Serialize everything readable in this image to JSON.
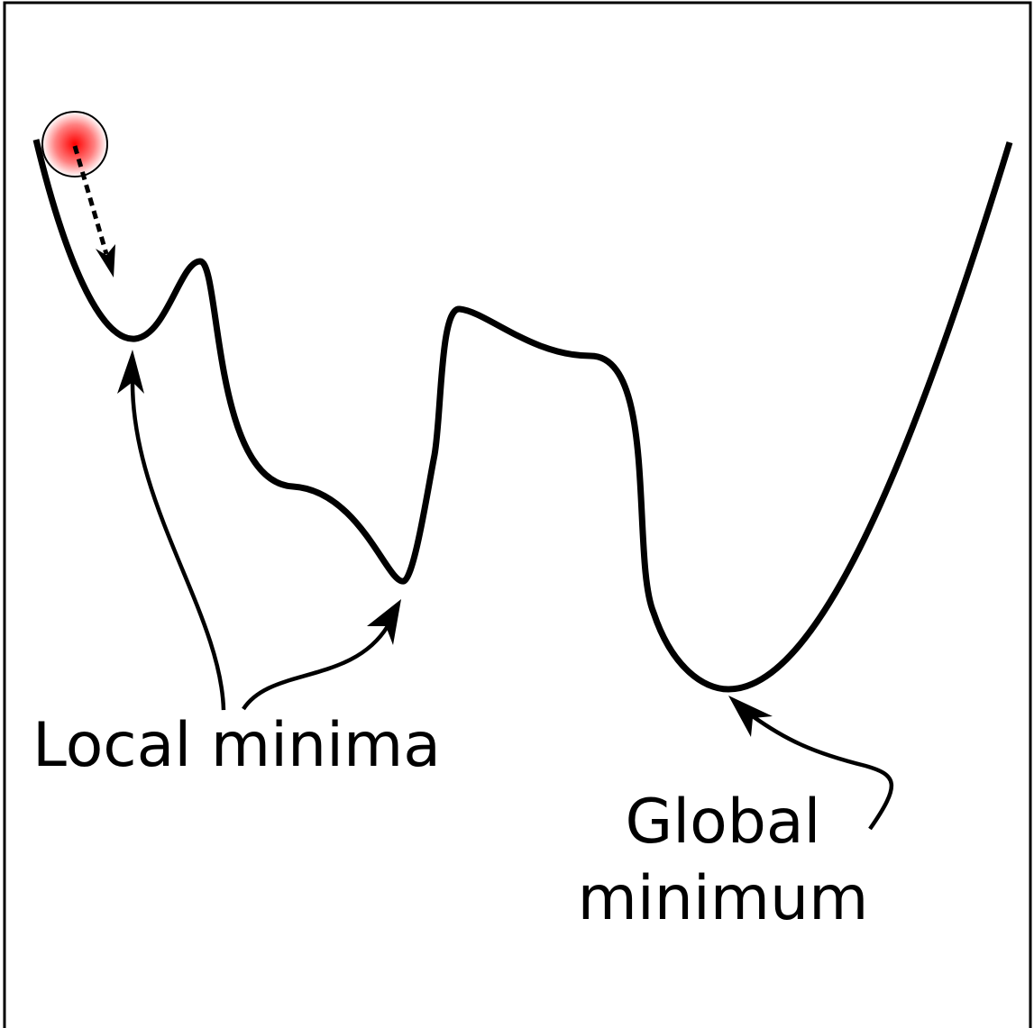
{
  "labels": {
    "local": "Local minima",
    "global": [
      "Global",
      "minimum"
    ]
  }
}
